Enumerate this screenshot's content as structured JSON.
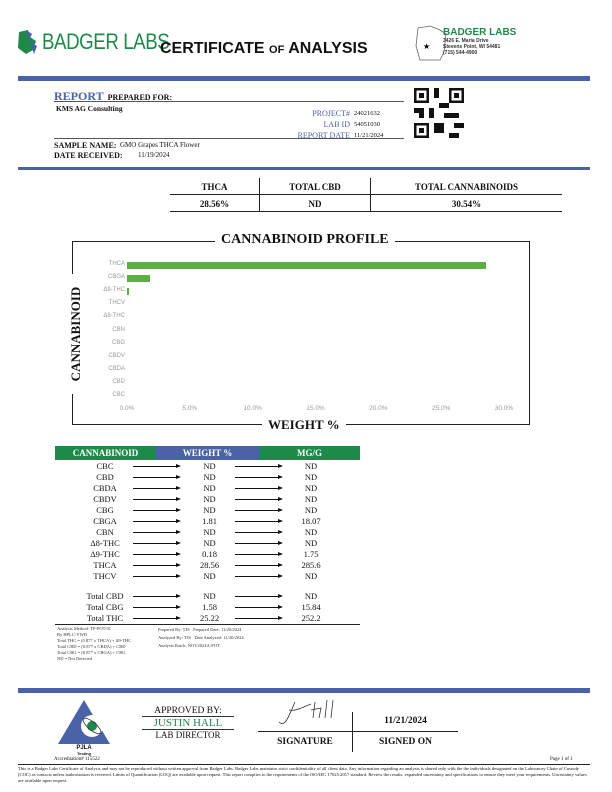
{
  "header": {
    "logo_text": "BADGER LABS",
    "title_main": "CERTIFICATE",
    "title_of": "OF",
    "title_end": "ANALYSIS",
    "lab_name": "BADGER LABS",
    "address1": "3426 E. Maria Drive",
    "address2": "Stevens Point, WI 54481",
    "phone": "(715) 544-4900"
  },
  "report": {
    "report_word": "REPORT",
    "prepared_for": "PREPARED FOR:",
    "client": "KMS AG Consulting",
    "project_label": "PROJECT#",
    "project": "24021632",
    "labid_label": "LAB ID",
    "labid": "54051030",
    "date_label": "REPORT DATE",
    "date": "11/21/2024",
    "sample_label": "SAMPLE NAME:",
    "sample": "GMO Grapes THCA Flower",
    "received_label": "DATE RECEIVED:",
    "received": "11/19/2024"
  },
  "summary": {
    "headers": [
      "THCA",
      "TOTAL CBD",
      "TOTAL CANNABINOIDS"
    ],
    "values": [
      "28.56%",
      "ND",
      "30.54%"
    ]
  },
  "chart_data": {
    "type": "bar",
    "orientation": "horizontal",
    "title": "CANNABINOID PROFILE",
    "xlabel": "WEIGHT %",
    "ylabel": "CANNABINOID",
    "categories": [
      "THCA",
      "CBGA",
      "Δ9-THC",
      "THCV",
      "Δ8-THC",
      "CBN",
      "CBG",
      "CBDV",
      "CBDA",
      "CBD",
      "CBC"
    ],
    "values": [
      28.56,
      1.81,
      0.18,
      0,
      0,
      0,
      0,
      0,
      0,
      0,
      0
    ],
    "xlim": [
      0,
      30
    ],
    "xticks": [
      "0.0%",
      "5.0%",
      "10.0%",
      "15.0%",
      "20.0%",
      "25.0%",
      "30.0%"
    ],
    "bar_color": "#5cb043",
    "grid": false
  },
  "table": {
    "headers": [
      "CANNABINOID",
      "WEIGHT %",
      "MG/G"
    ],
    "rows": [
      [
        "CBC",
        "ND",
        "ND"
      ],
      [
        "CBD",
        "ND",
        "ND"
      ],
      [
        "CBDA",
        "ND",
        "ND"
      ],
      [
        "CBDV",
        "ND",
        "ND"
      ],
      [
        "CBG",
        "ND",
        "ND"
      ],
      [
        "CBGA",
        "1.81",
        "18.07"
      ],
      [
        "CBN",
        "ND",
        "ND"
      ],
      [
        "Δ8-THC",
        "ND",
        "ND"
      ],
      [
        "Δ9-THC",
        "0.18",
        "1.75"
      ],
      [
        "THCA",
        "28.56",
        "285.6"
      ],
      [
        "THCV",
        "ND",
        "ND"
      ]
    ],
    "totals": [
      [
        "Total CBD",
        "ND",
        "ND"
      ],
      [
        "Total CBG",
        "1.58",
        "15.84"
      ],
      [
        "Total THC",
        "25.22",
        "252.2"
      ]
    ]
  },
  "notes": {
    "method": [
      "Analysis Method: TP-POT-01",
      "By HPLC-VWD",
      "Total THC = (0.877 x THCA) + Δ9-THC",
      "Total CBD = (0.877 x CBDA) + CBD",
      "Total CBG = (0.877 x CBGA) + CBG",
      "ND = Not Detected"
    ],
    "prepared_by_label": "Prepared By:",
    "prepared_by": "TJS",
    "prepared_date_label": "Prepared Date:",
    "prepared_date": "11/20/2024",
    "analyzed_by_label": "Analyzed By:",
    "analyzed_by": "TJS",
    "analyzed_date_label": "Date Analyzed:",
    "analyzed_date": "11/20/2024",
    "batch_label": "Analysis Batch:",
    "batch": "NOV2024A-POT"
  },
  "footer": {
    "pjla": "PJLA",
    "testing": "Testing",
    "accreditation": "Accreditation# 115522",
    "approved_by": "APPROVED BY:",
    "name": "JUSTIN HALL",
    "role": "LAB DIRECTOR",
    "signature_label": "SIGNATURE",
    "signed_date": "11/21/2024",
    "signed_on": "SIGNED ON",
    "page": "Page 1 of 1",
    "disclaimer": "This is a Badger Labs Certificate of Analysis and may not be reproduced without written approval from Badger Labs. Badger Labs maintains strict confidentiality of all client data. Any information regarding an analysis is shared only with the the individuals designated on the Laboratory Chain of Custody (COC) as contacts unless authorization is received. Limits of Quantification (LOQ) are available upon request. This report complies to the requirements of the ISO/IEC 17025:2017 standard. Review the results, expanded uncertainty and specifications to ensure they meet your requirements. Uncertainty values are available upon request."
  },
  "colors": {
    "brand_blue": "#4a63a6",
    "brand_green": "#1e8a4a",
    "bar_green": "#5cb043"
  }
}
